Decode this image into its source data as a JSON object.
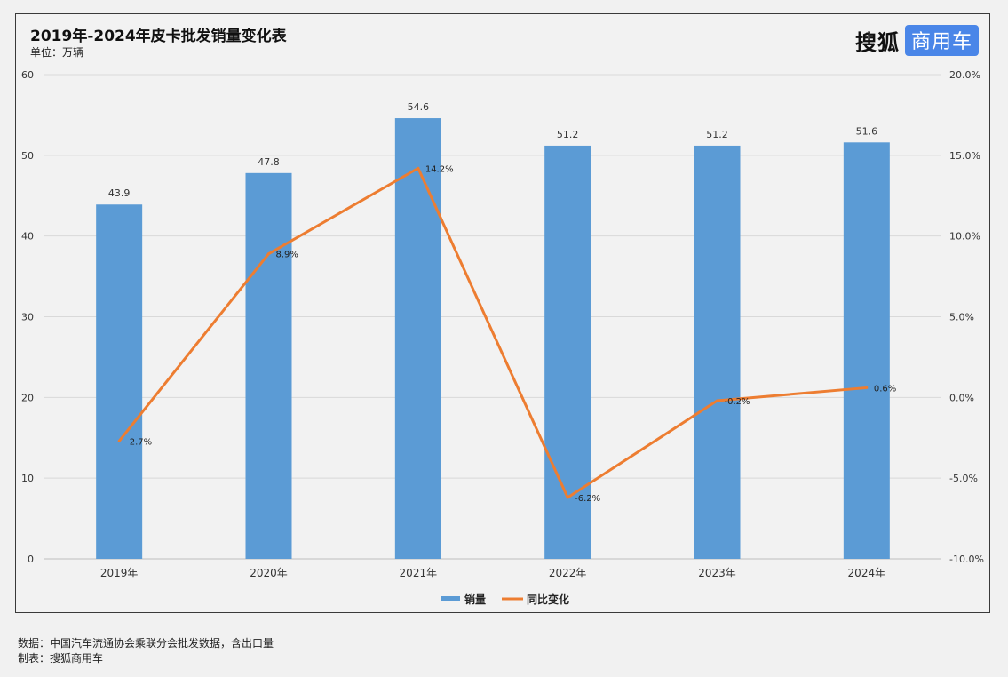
{
  "header": {
    "title": "2019年-2024年皮卡批发销量变化表",
    "unit": "单位：万辆",
    "logo_main": "搜狐",
    "logo_badge": "商用车"
  },
  "footer": {
    "source": "数据：中国汽车流通协会乘联分会批发数据，含出口量",
    "maker": "制表：搜狐商用车"
  },
  "chart_data": {
    "type": "bar",
    "categories": [
      "2019年",
      "2020年",
      "2021年",
      "2022年",
      "2023年",
      "2024年"
    ],
    "series": [
      {
        "name": "销量",
        "type": "bar",
        "axis": "left",
        "values": [
          43.9,
          47.8,
          54.6,
          51.2,
          51.2,
          51.6
        ],
        "labels": [
          "43.9",
          "47.8",
          "54.6",
          "51.2",
          "51.2",
          "51.6"
        ],
        "color": "#5b9bd5"
      },
      {
        "name": "同比变化",
        "type": "line",
        "axis": "right",
        "values": [
          -2.7,
          8.9,
          14.2,
          -6.2,
          -0.2,
          0.6
        ],
        "labels": [
          "-2.7%",
          "8.9%",
          "14.2%",
          "-6.2%",
          "-0.2%",
          "0.6%"
        ],
        "color": "#ed7d31"
      }
    ],
    "y_left": {
      "min": 0,
      "max": 60,
      "ticks": [
        0,
        10,
        20,
        30,
        40,
        50,
        60
      ]
    },
    "y_right": {
      "min": -10,
      "max": 20,
      "ticks": [
        -10,
        -5,
        0,
        5,
        10,
        15,
        20
      ],
      "tick_labels": [
        "-10.0%",
        "-5.0%",
        "0.0%",
        "5.0%",
        "10.0%",
        "15.0%",
        "20.0%"
      ]
    },
    "grid": true,
    "legend": "bottom-center"
  }
}
